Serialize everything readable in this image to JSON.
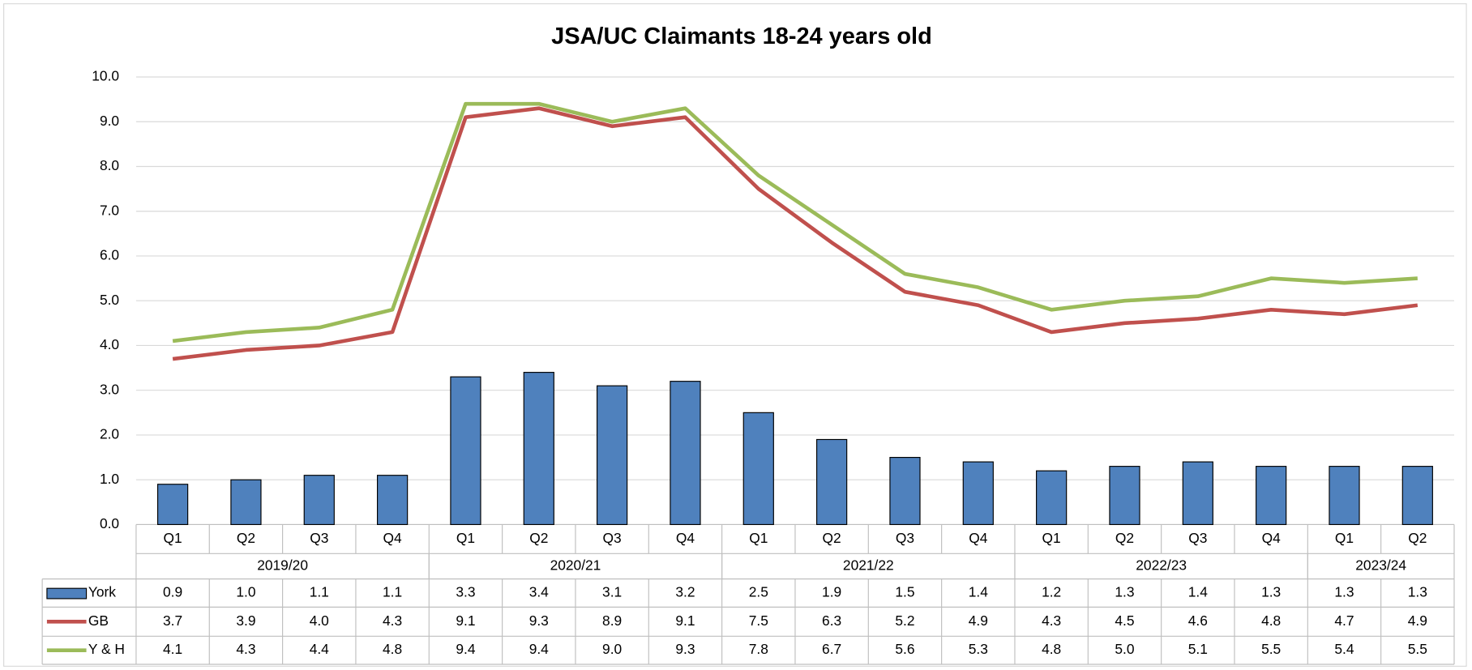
{
  "chart_data": {
    "type": "bar-line",
    "title": "JSA/UC Claimants 18-24 years old",
    "periods": [
      {
        "label": "2019/20",
        "quarters": [
          "Q1",
          "Q2",
          "Q3",
          "Q4"
        ]
      },
      {
        "label": "2020/21",
        "quarters": [
          "Q1",
          "Q2",
          "Q3",
          "Q4"
        ]
      },
      {
        "label": "2021/22",
        "quarters": [
          "Q1",
          "Q2",
          "Q3",
          "Q4"
        ]
      },
      {
        "label": "2022/23",
        "quarters": [
          "Q1",
          "Q2",
          "Q3",
          "Q4"
        ]
      },
      {
        "label": "2023/24",
        "quarters": [
          "Q1",
          "Q2"
        ]
      }
    ],
    "series": [
      {
        "name": "York",
        "type": "bar",
        "color": "#4f81bd",
        "values": [
          0.9,
          1.0,
          1.1,
          1.1,
          3.3,
          3.4,
          3.1,
          3.2,
          2.5,
          1.9,
          1.5,
          1.4,
          1.2,
          1.3,
          1.4,
          1.3,
          1.3,
          1.3
        ],
        "value_labels": [
          "0.9",
          "1.0",
          "1.1",
          "1.1",
          "3.3",
          "3.4",
          "3.1",
          "3.2",
          "2.5",
          "1.9",
          "1.5",
          "1.4",
          "1.2",
          "1.3",
          "1.4",
          "1.3",
          "1.3",
          "1.3"
        ]
      },
      {
        "name": "GB",
        "type": "line",
        "color": "#c0504d",
        "values": [
          3.7,
          3.9,
          4.0,
          4.3,
          9.1,
          9.3,
          8.9,
          9.1,
          7.5,
          6.3,
          5.2,
          4.9,
          4.3,
          4.5,
          4.6,
          4.8,
          4.7,
          4.9
        ],
        "value_labels": [
          "3.7",
          "3.9",
          "4.0",
          "4.3",
          "9.1",
          "9.3",
          "8.9",
          "9.1",
          "7.5",
          "6.3",
          "5.2",
          "4.9",
          "4.3",
          "4.5",
          "4.6",
          "4.8",
          "4.7",
          "4.9"
        ]
      },
      {
        "name": "Y & H",
        "type": "line",
        "color": "#9bbb59",
        "values": [
          4.1,
          4.3,
          4.4,
          4.8,
          9.4,
          9.4,
          9.0,
          9.3,
          7.8,
          6.7,
          5.6,
          5.3,
          4.8,
          5.0,
          5.1,
          5.5,
          5.4,
          5.5
        ],
        "value_labels": [
          "4.1",
          "4.3",
          "4.4",
          "4.8",
          "9.4",
          "9.4",
          "9.0",
          "9.3",
          "7.8",
          "6.7",
          "5.6",
          "5.3",
          "4.8",
          "5.0",
          "5.1",
          "5.5",
          "5.4",
          "5.5"
        ]
      }
    ],
    "ylim": [
      0,
      10
    ],
    "yticks": [
      {
        "value": 0,
        "label": "0.0"
      },
      {
        "value": 1,
        "label": "1.0"
      },
      {
        "value": 2,
        "label": "2.0"
      },
      {
        "value": 3,
        "label": "3.0"
      },
      {
        "value": 4,
        "label": "4.0"
      },
      {
        "value": 5,
        "label": "5.0"
      },
      {
        "value": 6,
        "label": "6.0"
      },
      {
        "value": 7,
        "label": "7.0"
      },
      {
        "value": 8,
        "label": "8.0"
      },
      {
        "value": 9,
        "label": "9.0"
      },
      {
        "value": 10,
        "label": "10.0"
      }
    ],
    "grid": true
  }
}
